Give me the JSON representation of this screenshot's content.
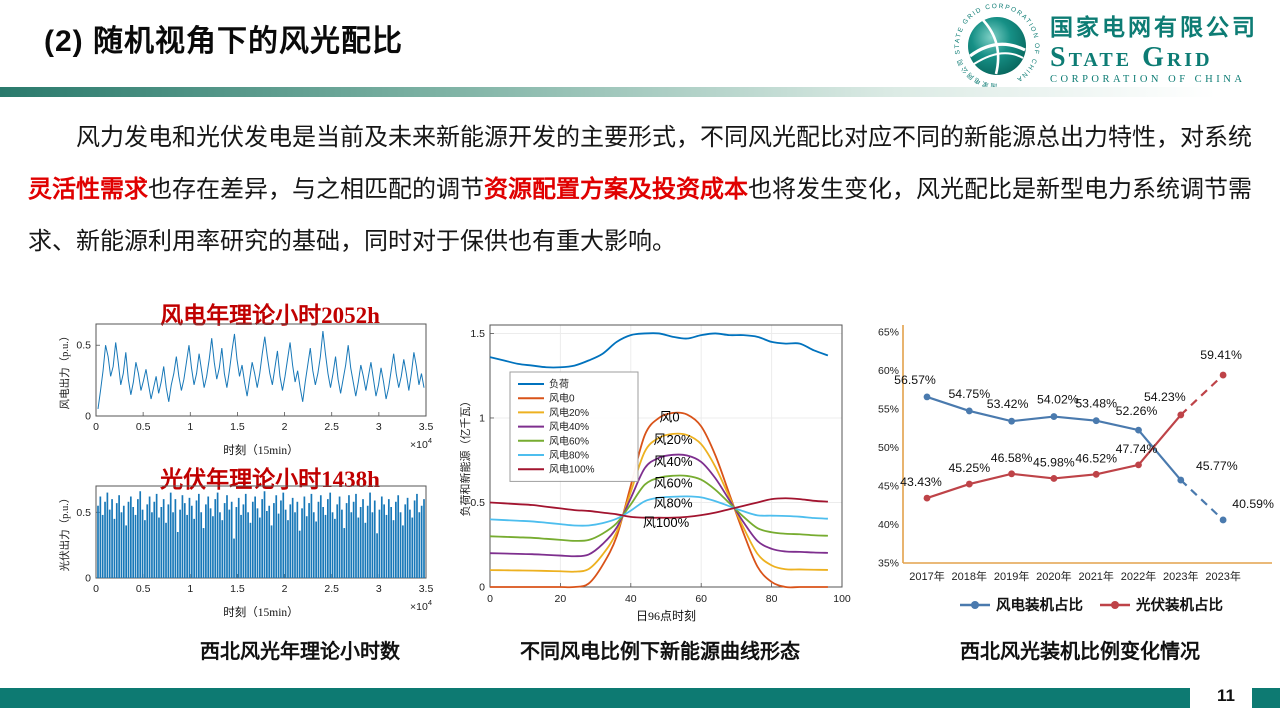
{
  "slide": {
    "title": "(2) 随机视角下的风光配比",
    "page_number": "11"
  },
  "logo": {
    "cn": "国家电网有限公司",
    "en": "State Grid",
    "sub": "CORPORATION OF CHINA",
    "ring_text": "国家电网公司 STATE GRID CORPORATION OF CHINA"
  },
  "paragraph": {
    "segments": [
      {
        "text": "风力发电和光伏发电是当前及未来新能源开发的主要形式，不同风光配比对应不同的新能源总出力特性，对系统",
        "em": false
      },
      {
        "text": "灵活性需求",
        "em": true
      },
      {
        "text": "也存在差异，与之相匹配的调节",
        "em": false
      },
      {
        "text": "资源配置方案及投资成本",
        "em": true
      },
      {
        "text": "也将发生变化，风光配比是新型电力系统调节需求、新能源利用率研究的基础，同时对于保供也有重大影响。",
        "em": false
      }
    ]
  },
  "captions": {
    "left": "西北风光年理论小时数",
    "middle": "不同风电比例下新能源曲线形态",
    "right": "西北风光装机比例变化情况"
  },
  "chart_data": [
    {
      "id": "wind_theoretical_hours",
      "type": "line",
      "title_text": "风电年理论小时",
      "title_value": "2052h",
      "ylabel": "风电出力（p.u.）",
      "xlabel": "时刻（15min）",
      "x_multiplier": "×10",
      "x_multiplier_exp": "4",
      "xlim": [
        0,
        3.5
      ],
      "xticks": [
        0,
        0.5,
        1,
        1.5,
        2,
        2.5,
        3,
        3.5
      ],
      "ylim": [
        0,
        0.65
      ],
      "yticks": [
        0,
        0.5
      ],
      "color": "#1878b8",
      "values": [
        0.05,
        0.18,
        0.32,
        0.5,
        0.42,
        0.28,
        0.35,
        0.52,
        0.38,
        0.22,
        0.3,
        0.45,
        0.26,
        0.15,
        0.24,
        0.38,
        0.3,
        0.18,
        0.25,
        0.33,
        0.22,
        0.12,
        0.2,
        0.28,
        0.16,
        0.24,
        0.35,
        0.2,
        0.1,
        0.22,
        0.3,
        0.42,
        0.28,
        0.18,
        0.26,
        0.38,
        0.5,
        0.34,
        0.22,
        0.3,
        0.44,
        0.32,
        0.2,
        0.28,
        0.4,
        0.55,
        0.38,
        0.26,
        0.34,
        0.48,
        0.3,
        0.2,
        0.32,
        0.46,
        0.58,
        0.4,
        0.28,
        0.36,
        0.24,
        0.14,
        0.26,
        0.38,
        0.3,
        0.2,
        0.3,
        0.44,
        0.56,
        0.42,
        0.3,
        0.22,
        0.34,
        0.46,
        0.28,
        0.18,
        0.28,
        0.4,
        0.52,
        0.36,
        0.24,
        0.32,
        0.2,
        0.1,
        0.24,
        0.36,
        0.48,
        0.32,
        0.22,
        0.3,
        0.42,
        0.6,
        0.44,
        0.3,
        0.2,
        0.3,
        0.42,
        0.26,
        0.16,
        0.26,
        0.36,
        0.5,
        0.34,
        0.24,
        0.14,
        0.24,
        0.36,
        0.28,
        0.18,
        0.28,
        0.38,
        0.26,
        0.14,
        0.22,
        0.34,
        0.24,
        0.12,
        0.2,
        0.32,
        0.44,
        0.3,
        0.2,
        0.28,
        0.4,
        0.3,
        0.18,
        0.3,
        0.45,
        0.35,
        0.22,
        0.3,
        0.2
      ]
    },
    {
      "id": "pv_theoretical_hours",
      "type": "bars",
      "title_text": "光伏年理论小时",
      "title_value": "1438h",
      "ylabel": "光伏出力（p.u.）",
      "xlabel": "时刻（15min）",
      "x_multiplier": "×10",
      "x_multiplier_exp": "4",
      "xlim": [
        0,
        3.5
      ],
      "xticks": [
        0,
        0.5,
        1,
        1.5,
        2,
        2.5,
        3,
        3.5
      ],
      "ylim": [
        0,
        0.7
      ],
      "yticks": [
        0,
        0.5
      ],
      "color": "#1878b8",
      "values": [
        0.55,
        0.62,
        0.48,
        0.58,
        0.65,
        0.52,
        0.6,
        0.45,
        0.57,
        0.63,
        0.5,
        0.55,
        0.4,
        0.58,
        0.62,
        0.54,
        0.48,
        0.6,
        0.66,
        0.52,
        0.44,
        0.56,
        0.62,
        0.5,
        0.58,
        0.64,
        0.46,
        0.54,
        0.6,
        0.42,
        0.56,
        0.65,
        0.5,
        0.6,
        0.35,
        0.52,
        0.63,
        0.57,
        0.48,
        0.61,
        0.55,
        0.45,
        0.59,
        0.64,
        0.5,
        0.38,
        0.56,
        0.62,
        0.53,
        0.47,
        0.6,
        0.65,
        0.5,
        0.44,
        0.57,
        0.63,
        0.52,
        0.58,
        0.3,
        0.54,
        0.61,
        0.48,
        0.56,
        0.64,
        0.5,
        0.42,
        0.58,
        0.62,
        0.53,
        0.46,
        0.6,
        0.66,
        0.51,
        0.55,
        0.4,
        0.57,
        0.63,
        0.49,
        0.59,
        0.65,
        0.52,
        0.44,
        0.56,
        0.61,
        0.5,
        0.58,
        0.36,
        0.53,
        0.62,
        0.47,
        0.57,
        0.64,
        0.5,
        0.43,
        0.58,
        0.63,
        0.54,
        0.48,
        0.6,
        0.65,
        0.5,
        0.45,
        0.56,
        0.62,
        0.52,
        0.38,
        0.57,
        0.63,
        0.5,
        0.58,
        0.64,
        0.46,
        0.54,
        0.6,
        0.42,
        0.55,
        0.65,
        0.5,
        0.59,
        0.34,
        0.52,
        0.62,
        0.56,
        0.48,
        0.6,
        0.54,
        0.44,
        0.58,
        0.63,
        0.5,
        0.4,
        0.56,
        0.61,
        0.52,
        0.46,
        0.59,
        0.64,
        0.5,
        0.55,
        0.6
      ]
    },
    {
      "id": "mix_curves",
      "type": "line",
      "xlabel": "日96点时刻",
      "ylabel": "负荷和新能源（亿千瓦）",
      "xlim": [
        0,
        100
      ],
      "xticks": [
        0,
        20,
        40,
        60,
        80,
        100
      ],
      "ylim": [
        0,
        1.55
      ],
      "yticks": [
        0,
        0.5,
        1,
        1.5
      ],
      "grid": true,
      "legend_position": "upper-left-inside",
      "x": [
        0,
        4,
        8,
        12,
        16,
        20,
        24,
        28,
        32,
        36,
        40,
        44,
        48,
        52,
        56,
        60,
        64,
        68,
        72,
        76,
        80,
        84,
        88,
        92,
        96
      ],
      "series": [
        {
          "name": "负荷",
          "color": "#0072BD",
          "values": [
            1.36,
            1.34,
            1.32,
            1.31,
            1.3,
            1.3,
            1.31,
            1.34,
            1.38,
            1.45,
            1.49,
            1.5,
            1.5,
            1.48,
            1.47,
            1.49,
            1.5,
            1.49,
            1.49,
            1.48,
            1.45,
            1.44,
            1.44,
            1.4,
            1.37
          ]
        },
        {
          "name": "风电0",
          "color": "#D95319",
          "values": [
            0,
            0,
            0,
            0,
            0,
            0,
            0,
            0.02,
            0.13,
            0.3,
            0.6,
            0.9,
            1.0,
            1.03,
            1.02,
            0.95,
            0.78,
            0.55,
            0.32,
            0.12,
            0.03,
            0,
            0,
            0,
            0
          ]
        },
        {
          "name": "风电20%",
          "color": "#EDB120",
          "values": [
            0.1,
            0.099,
            0.098,
            0.097,
            0.095,
            0.093,
            0.091,
            0.106,
            0.192,
            0.326,
            0.563,
            0.802,
            0.882,
            0.906,
            0.899,
            0.845,
            0.712,
            0.532,
            0.352,
            0.196,
            0.128,
            0.105,
            0.104,
            0.102,
            0.101
          ]
        },
        {
          "name": "风电40%",
          "color": "#7E2F8E",
          "values": [
            0.2,
            0.198,
            0.196,
            0.194,
            0.19,
            0.186,
            0.182,
            0.192,
            0.254,
            0.352,
            0.526,
            0.704,
            0.764,
            0.782,
            0.778,
            0.74,
            0.644,
            0.514,
            0.384,
            0.272,
            0.226,
            0.21,
            0.208,
            0.204,
            0.202
          ]
        },
        {
          "name": "风电60%",
          "color": "#77AC30",
          "values": [
            0.3,
            0.297,
            0.294,
            0.291,
            0.285,
            0.279,
            0.273,
            0.278,
            0.316,
            0.378,
            0.489,
            0.606,
            0.646,
            0.658,
            0.657,
            0.635,
            0.576,
            0.496,
            0.416,
            0.348,
            0.324,
            0.315,
            0.312,
            0.306,
            0.303
          ]
        },
        {
          "name": "风电80%",
          "color": "#4DBEEE",
          "values": [
            0.4,
            0.396,
            0.392,
            0.388,
            0.38,
            0.372,
            0.364,
            0.364,
            0.378,
            0.404,
            0.452,
            0.508,
            0.528,
            0.534,
            0.536,
            0.53,
            0.508,
            0.478,
            0.448,
            0.424,
            0.422,
            0.42,
            0.416,
            0.408,
            0.404
          ]
        },
        {
          "name": "风电100%",
          "color": "#A2142F",
          "values": [
            0.5,
            0.495,
            0.49,
            0.485,
            0.475,
            0.465,
            0.455,
            0.45,
            0.44,
            0.43,
            0.415,
            0.41,
            0.41,
            0.41,
            0.415,
            0.425,
            0.44,
            0.46,
            0.48,
            0.5,
            0.52,
            0.525,
            0.52,
            0.51,
            0.505
          ]
        }
      ],
      "annotations": [
        {
          "text": "风0",
          "x": 51,
          "y": 0.98
        },
        {
          "text": "风20%",
          "x": 52,
          "y": 0.845
        },
        {
          "text": "风40%",
          "x": 52,
          "y": 0.715
        },
        {
          "text": "风60%",
          "x": 52,
          "y": 0.59
        },
        {
          "text": "风80%",
          "x": 52,
          "y": 0.47
        },
        {
          "text": "风100%",
          "x": 50,
          "y": 0.355
        }
      ]
    },
    {
      "id": "capacity_share",
      "type": "line",
      "categories": [
        "2017年",
        "2018年",
        "2019年",
        "2020年",
        "2021年",
        "2022年",
        "2023年",
        "2023年"
      ],
      "ylim": [
        35,
        65
      ],
      "ytick_values": [
        35,
        40,
        45,
        50,
        55,
        60,
        65
      ],
      "ytick_labels": [
        "35%",
        "40%",
        "45%",
        "50%",
        "55%",
        "60%",
        "65%"
      ],
      "axis_color": "#e3a24b",
      "series": [
        {
          "name": "风电装机占比",
          "color": "#4a7aae",
          "values": [
            56.57,
            54.75,
            53.42,
            54.02,
            53.48,
            52.26,
            45.77,
            40.59
          ],
          "labels": [
            "56.57%",
            "54.75%",
            "53.42%",
            "54.02%",
            "53.48%",
            "52.26%",
            "45.77%",
            "40.59%"
          ],
          "dashed_from": 6,
          "label_offsets": [
            [
              -12,
              -13
            ],
            [
              0,
              -13
            ],
            [
              -4,
              -13
            ],
            [
              4,
              -13
            ],
            [
              0,
              -13
            ],
            [
              -2,
              -15
            ],
            [
              36,
              -10
            ],
            [
              30,
              -12
            ]
          ]
        },
        {
          "name": "光伏装机占比",
          "color": "#be4348",
          "values": [
            43.43,
            45.25,
            46.58,
            45.98,
            46.52,
            47.74,
            54.23,
            59.41
          ],
          "labels": [
            "43.43%",
            "45.25%",
            "46.58%",
            "45.98%",
            "46.52%",
            "47.74%",
            "54.23%",
            "59.41%"
          ],
          "dashed_from": 6,
          "label_offsets": [
            [
              -6,
              -12
            ],
            [
              0,
              -12
            ],
            [
              0,
              -12
            ],
            [
              0,
              -12
            ],
            [
              0,
              -12
            ],
            [
              -2,
              -12
            ],
            [
              -16,
              -14
            ],
            [
              -2,
              -16
            ]
          ]
        }
      ]
    }
  ]
}
